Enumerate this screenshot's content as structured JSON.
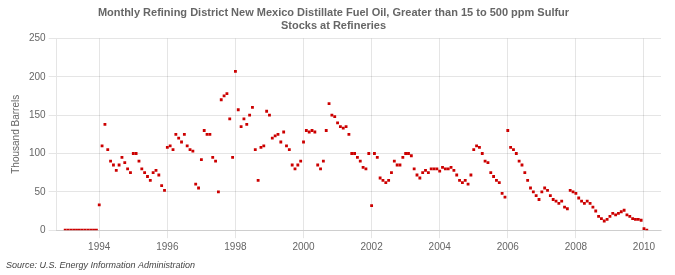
{
  "chart_data": {
    "type": "scatter",
    "title": "Monthly Refining District New Mexico Distillate Fuel Oil, Greater than 15 to 500 ppm Sulfur\nStocks at Refineries",
    "ylabel": "Thousand Barrels",
    "annotations": [
      "Source: U.S. Energy Information Administration"
    ],
    "color": "#cc0000",
    "marker": "square",
    "grid": true,
    "xlim": [
      1992.75,
      2010.5
    ],
    "xticks": [
      1994,
      1996,
      1998,
      2000,
      2002,
      2004,
      2006,
      2008,
      2010
    ],
    "ylim": [
      0,
      250
    ],
    "yticks": [
      0,
      50,
      100,
      150,
      200,
      250
    ],
    "x": [
      1993.0,
      1993.083,
      1993.167,
      1993.25,
      1993.333,
      1993.417,
      1993.5,
      1993.583,
      1993.667,
      1993.75,
      1993.833,
      1993.917,
      1994.0,
      1994.083,
      1994.167,
      1994.25,
      1994.333,
      1994.417,
      1994.5,
      1994.583,
      1994.667,
      1994.75,
      1994.833,
      1994.917,
      1995.0,
      1995.083,
      1995.167,
      1995.25,
      1995.333,
      1995.417,
      1995.5,
      1995.583,
      1995.667,
      1995.75,
      1995.833,
      1995.917,
      1996.0,
      1996.083,
      1996.167,
      1996.25,
      1996.333,
      1996.417,
      1996.5,
      1996.583,
      1996.667,
      1996.75,
      1996.833,
      1996.917,
      1997.0,
      1997.083,
      1997.167,
      1997.25,
      1997.333,
      1997.417,
      1997.5,
      1997.583,
      1997.667,
      1997.75,
      1997.833,
      1997.917,
      1998.0,
      1998.083,
      1998.167,
      1998.25,
      1998.333,
      1998.417,
      1998.5,
      1998.583,
      1998.667,
      1998.75,
      1998.833,
      1998.917,
      1999.0,
      1999.083,
      1999.167,
      1999.25,
      1999.333,
      1999.417,
      1999.5,
      1999.583,
      1999.667,
      1999.75,
      1999.833,
      1999.917,
      2000.0,
      2000.083,
      2000.167,
      2000.25,
      2000.333,
      2000.417,
      2000.5,
      2000.583,
      2000.667,
      2000.75,
      2000.833,
      2000.917,
      2001.0,
      2001.083,
      2001.167,
      2001.25,
      2001.333,
      2001.417,
      2001.5,
      2001.583,
      2001.667,
      2001.75,
      2001.833,
      2001.917,
      2002.0,
      2002.083,
      2002.167,
      2002.25,
      2002.333,
      2002.417,
      2002.5,
      2002.583,
      2002.667,
      2002.75,
      2002.833,
      2002.917,
      2003.0,
      2003.083,
      2003.167,
      2003.25,
      2003.333,
      2003.417,
      2003.5,
      2003.583,
      2003.667,
      2003.75,
      2003.833,
      2003.917,
      2004.0,
      2004.083,
      2004.167,
      2004.25,
      2004.333,
      2004.417,
      2004.5,
      2004.583,
      2004.667,
      2004.75,
      2004.833,
      2004.917,
      2005.0,
      2005.083,
      2005.167,
      2005.25,
      2005.333,
      2005.417,
      2005.5,
      2005.583,
      2005.667,
      2005.75,
      2005.833,
      2005.917,
      2006.0,
      2006.083,
      2006.167,
      2006.25,
      2006.333,
      2006.417,
      2006.5,
      2006.583,
      2006.667,
      2006.75,
      2006.833,
      2006.917,
      2007.0,
      2007.083,
      2007.167,
      2007.25,
      2007.333,
      2007.417,
      2007.5,
      2007.583,
      2007.667,
      2007.75,
      2007.833,
      2007.917,
      2008.0,
      2008.083,
      2008.167,
      2008.25,
      2008.333,
      2008.417,
      2008.5,
      2008.583,
      2008.667,
      2008.75,
      2008.833,
      2008.917,
      2009.0,
      2009.083,
      2009.167,
      2009.25,
      2009.333,
      2009.417,
      2009.5,
      2009.583,
      2009.667,
      2009.75,
      2009.833,
      2009.917,
      2010.0,
      2010.083
    ],
    "values": [
      0,
      0,
      0,
      0,
      0,
      0,
      0,
      0,
      0,
      0,
      0,
      0,
      33,
      110,
      138,
      105,
      90,
      85,
      78,
      85,
      95,
      88,
      80,
      75,
      100,
      100,
      90,
      80,
      75,
      70,
      65,
      75,
      78,
      72,
      58,
      52,
      108,
      110,
      105,
      125,
      120,
      115,
      125,
      110,
      105,
      103,
      60,
      55,
      92,
      130,
      125,
      125,
      95,
      90,
      50,
      170,
      175,
      178,
      145,
      95,
      207,
      157,
      135,
      145,
      138,
      150,
      160,
      105,
      65,
      108,
      110,
      155,
      150,
      120,
      123,
      125,
      115,
      128,
      110,
      105,
      85,
      80,
      85,
      90,
      115,
      130,
      128,
      130,
      128,
      85,
      80,
      90,
      130,
      165,
      150,
      148,
      140,
      135,
      133,
      135,
      125,
      100,
      100,
      95,
      90,
      82,
      80,
      100,
      32,
      100,
      95,
      68,
      65,
      62,
      65,
      75,
      90,
      85,
      85,
      95,
      100,
      100,
      97,
      80,
      72,
      68,
      75,
      78,
      75,
      80,
      80,
      80,
      77,
      82,
      80,
      80,
      82,
      78,
      72,
      65,
      62,
      65,
      60,
      72,
      105,
      110,
      108,
      100,
      90,
      88,
      75,
      70,
      65,
      62,
      48,
      43,
      130,
      108,
      105,
      100,
      90,
      85,
      75,
      65,
      55,
      50,
      45,
      40,
      50,
      55,
      52,
      45,
      40,
      38,
      35,
      38,
      30,
      28,
      52,
      50,
      48,
      42,
      38,
      35,
      38,
      35,
      30,
      25,
      18,
      15,
      12,
      14,
      18,
      22,
      20,
      22,
      24,
      26,
      20,
      18,
      15,
      14,
      14,
      13,
      2,
      0
    ]
  }
}
